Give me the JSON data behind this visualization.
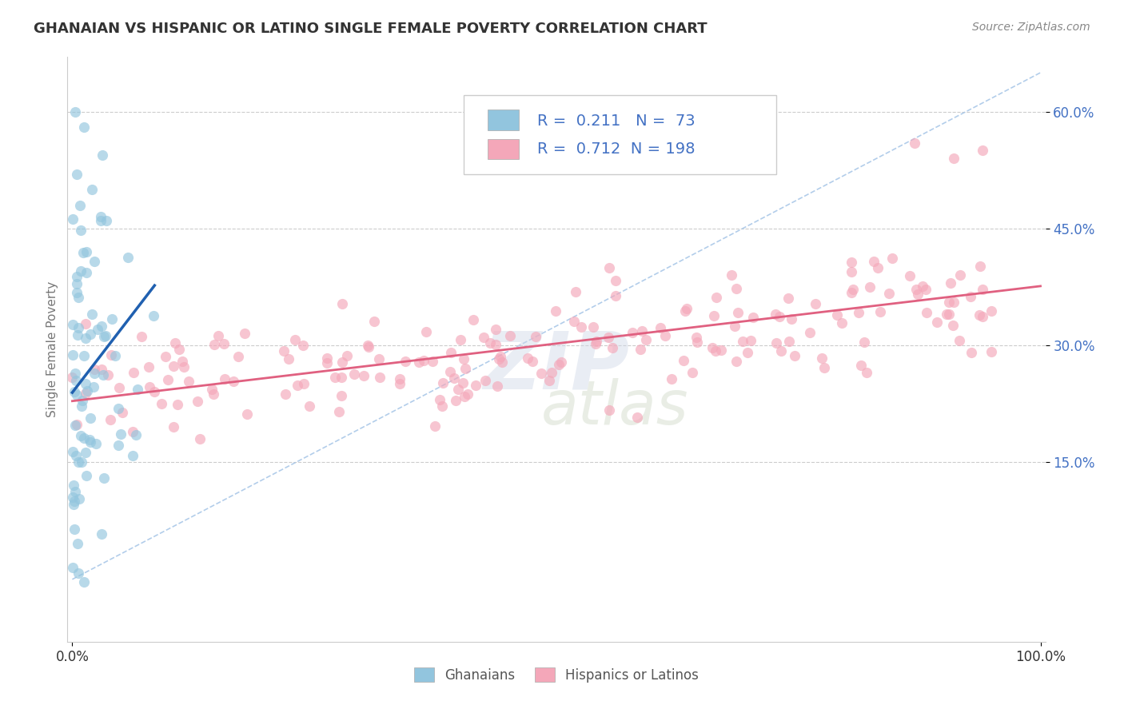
{
  "title": "GHANAIAN VS HISPANIC OR LATINO SINGLE FEMALE POVERTY CORRELATION CHART",
  "source_text": "Source: ZipAtlas.com",
  "ylabel": "Single Female Poverty",
  "x_min": 0.0,
  "x_max": 1.0,
  "y_min": -0.08,
  "y_max": 0.67,
  "y_tick_labels": [
    "15.0%",
    "30.0%",
    "45.0%",
    "60.0%"
  ],
  "y_tick_positions": [
    0.15,
    0.3,
    0.45,
    0.6
  ],
  "ghanaian_color": "#92c5de",
  "hispanic_color": "#f4a7b9",
  "ghanaian_R": 0.211,
  "ghanaian_N": 73,
  "hispanic_R": 0.712,
  "hispanic_N": 198,
  "legend_label_1": "Ghanaians",
  "legend_label_2": "Hispanics or Latinos",
  "watermark_line1": "ZIP",
  "watermark_line2": "atlas",
  "background_color": "#ffffff",
  "grid_color": "#cccccc",
  "title_color": "#333333",
  "axis_label_color": "#777777",
  "blue_line_color": "#2060b0",
  "pink_line_color": "#e06080",
  "diag_line_color": "#aac8e8",
  "title_fontsize": 13,
  "source_fontsize": 10,
  "legend_fontsize": 14,
  "tick_color": "#4472c4",
  "legend_text_color": "#4472c4",
  "legend_r_color": "#4472c4",
  "legend_n_color": "#e06080"
}
